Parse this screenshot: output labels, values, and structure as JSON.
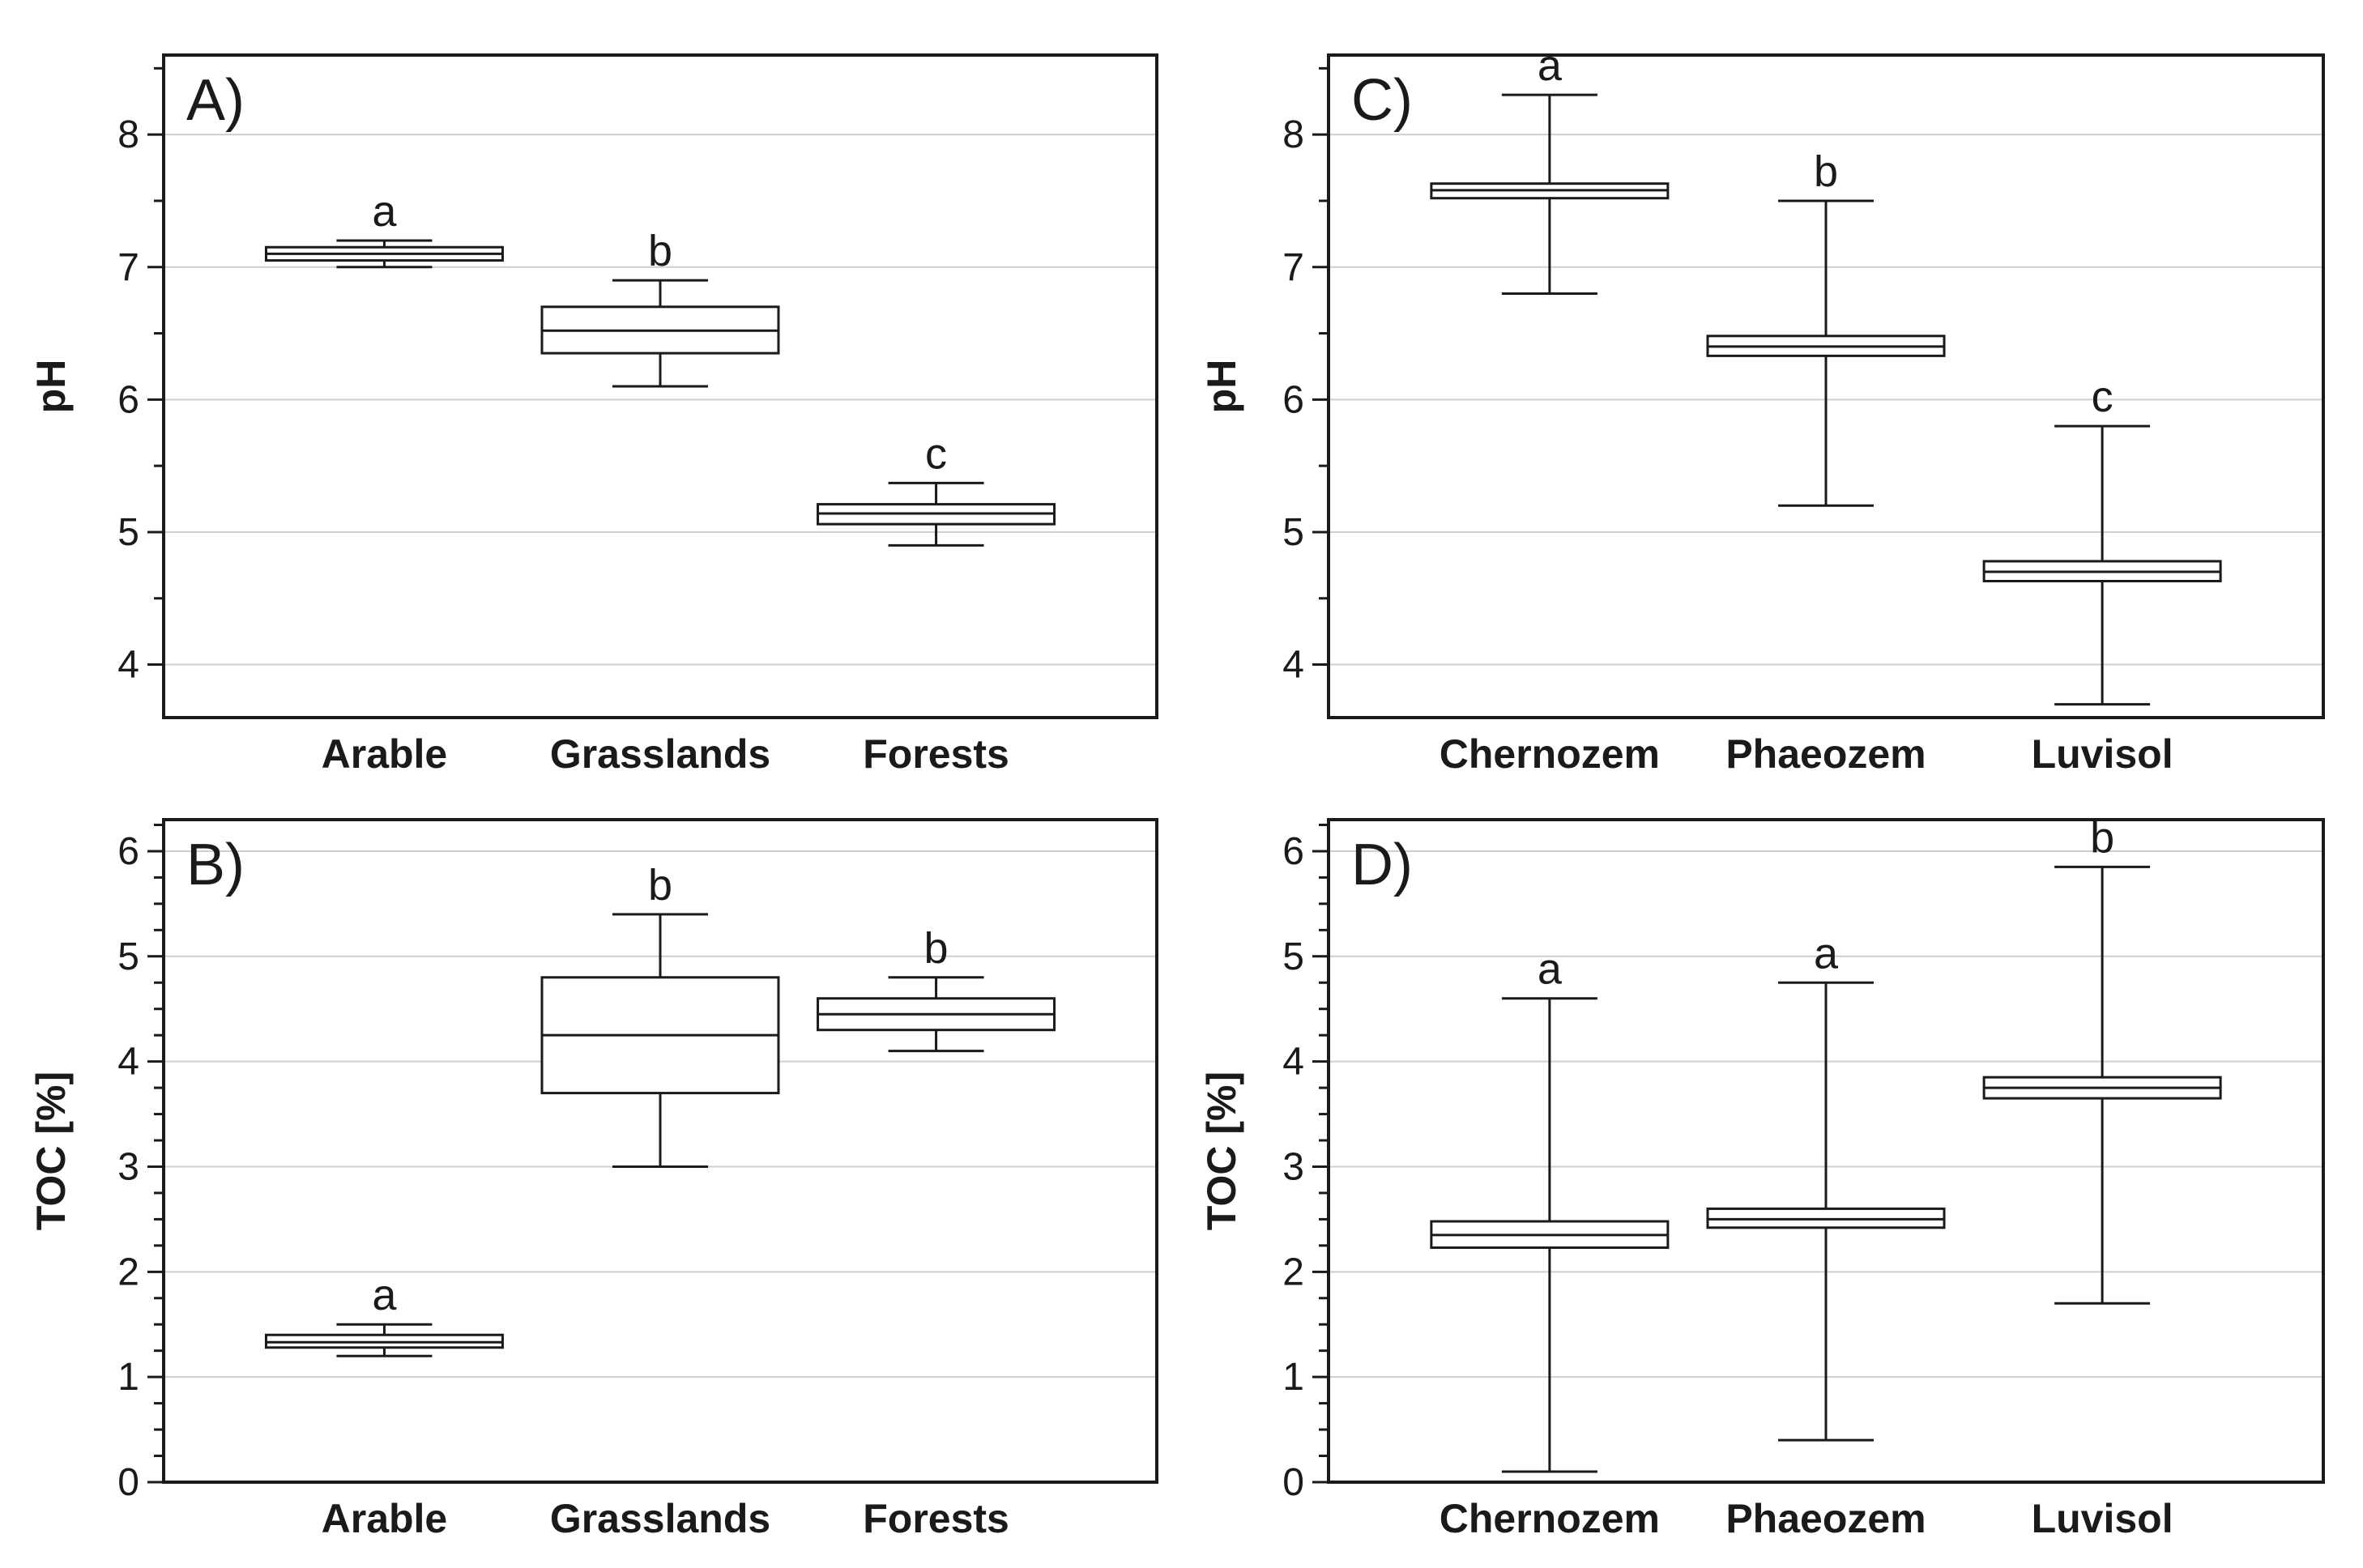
{
  "figure": {
    "background": "#ffffff",
    "ink": "#1a1a1a",
    "grid_color": "#cfcfcf"
  },
  "chart_data": [
    {
      "id": "A",
      "type": "box",
      "panel_label": "A)",
      "ylabel": "pH",
      "ylim": [
        3.6,
        8.6
      ],
      "yticks": [
        4,
        5,
        6,
        7,
        8
      ],
      "minor_step": 0.5,
      "grid": true,
      "categories": [
        "Arable",
        "Grasslands",
        "Forests"
      ],
      "boxes": [
        {
          "min": 7.0,
          "q1": 7.05,
          "median": 7.1,
          "q3": 7.15,
          "max": 7.2,
          "letter": "a"
        },
        {
          "min": 6.1,
          "q1": 6.35,
          "median": 6.52,
          "q3": 6.7,
          "max": 6.9,
          "letter": "b"
        },
        {
          "min": 4.9,
          "q1": 5.06,
          "median": 5.14,
          "q3": 5.21,
          "max": 5.37,
          "letter": "c"
        }
      ]
    },
    {
      "id": "B",
      "type": "box",
      "panel_label": "B)",
      "ylabel": "TOC [%]",
      "ylim": [
        0,
        6.3
      ],
      "yticks": [
        0,
        1,
        2,
        3,
        4,
        5,
        6
      ],
      "minor_step": 0.25,
      "grid": true,
      "categories": [
        "Arable",
        "Grasslands",
        "Forests"
      ],
      "boxes": [
        {
          "min": 1.2,
          "q1": 1.28,
          "median": 1.33,
          "q3": 1.4,
          "max": 1.5,
          "letter": "a"
        },
        {
          "min": 3.0,
          "q1": 3.7,
          "median": 4.25,
          "q3": 4.8,
          "max": 5.4,
          "letter": "b"
        },
        {
          "min": 4.1,
          "q1": 4.3,
          "median": 4.45,
          "q3": 4.6,
          "max": 4.8,
          "letter": "b"
        }
      ]
    },
    {
      "id": "C",
      "type": "box",
      "panel_label": "C)",
      "ylabel": "pH",
      "ylim": [
        3.6,
        8.6
      ],
      "yticks": [
        4,
        5,
        6,
        7,
        8
      ],
      "minor_step": 0.5,
      "grid": true,
      "categories": [
        "Chernozem",
        "Phaeozem",
        "Luvisol"
      ],
      "boxes": [
        {
          "min": 6.8,
          "q1": 7.52,
          "median": 7.58,
          "q3": 7.63,
          "max": 8.3,
          "letter": "a"
        },
        {
          "min": 5.2,
          "q1": 6.33,
          "median": 6.4,
          "q3": 6.48,
          "max": 7.5,
          "letter": "b"
        },
        {
          "min": 3.7,
          "q1": 4.63,
          "median": 4.7,
          "q3": 4.78,
          "max": 5.8,
          "letter": "c"
        }
      ]
    },
    {
      "id": "D",
      "type": "box",
      "panel_label": "D)",
      "ylabel": "TOC [%]",
      "ylim": [
        0,
        6.3
      ],
      "yticks": [
        0,
        1,
        2,
        3,
        4,
        5,
        6
      ],
      "minor_step": 0.25,
      "grid": true,
      "categories": [
        "Chernozem",
        "Phaeozem",
        "Luvisol"
      ],
      "boxes": [
        {
          "min": 0.1,
          "q1": 2.23,
          "median": 2.35,
          "q3": 2.48,
          "max": 4.6,
          "letter": "a"
        },
        {
          "min": 0.4,
          "q1": 2.42,
          "median": 2.5,
          "q3": 2.6,
          "max": 4.75,
          "letter": "a"
        },
        {
          "min": 1.7,
          "q1": 3.65,
          "median": 3.75,
          "q3": 3.85,
          "max": 5.85,
          "letter": "b"
        }
      ]
    }
  ]
}
